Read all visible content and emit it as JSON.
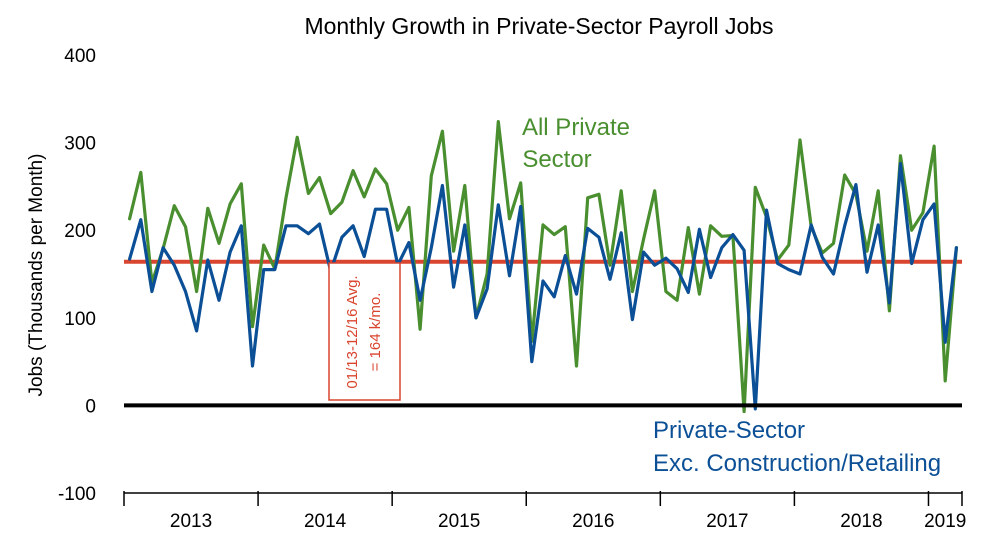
{
  "chart_data": {
    "type": "line",
    "title": "Monthly Growth in Private-Sector Payroll Jobs",
    "ylabel": "Jobs (Thousands per Month)",
    "ylim": [
      -100,
      400
    ],
    "yticks": [
      "400",
      "300",
      "200",
      "100",
      "0",
      "-100"
    ],
    "ytick_values": [
      400,
      300,
      200,
      100,
      0,
      -100
    ],
    "x_years": [
      "2013",
      "2014",
      "2015",
      "2016",
      "2017",
      "2018",
      "2019"
    ],
    "grid": false,
    "colors": {
      "all": "#4a8f2f",
      "exc": "#0b4f96",
      "avg": "#d9452e",
      "zero": "#000000"
    },
    "reference_line": {
      "value": 164,
      "label_lines": [
        "01/13-12/16 Avg.",
        "= 164 k/mo."
      ]
    },
    "series": [
      {
        "name": "All Private Sector",
        "label_lines": [
          "All Private",
          "Sector"
        ],
        "values": [
          213,
          266,
          140,
          179,
          228,
          204,
          130,
          225,
          185,
          230,
          253,
          90,
          183,
          156,
          237,
          306,
          242,
          260,
          219,
          232,
          268,
          238,
          270,
          253,
          200,
          226,
          87,
          262,
          313,
          176,
          251,
          100,
          150,
          324,
          213,
          254,
          73,
          206,
          195,
          204,
          45,
          237,
          241,
          160,
          245,
          130,
          190,
          245,
          130,
          120,
          203,
          127,
          205,
          193,
          194,
          -7,
          249,
          215,
          166,
          183,
          303,
          204,
          174,
          185,
          263,
          241,
          176,
          245,
          108,
          285,
          200,
          220,
          296,
          28,
          180
        ],
        "start": "2013-01"
      },
      {
        "name": "Private-Sector Exc. Construction/Retailing",
        "label_lines": [
          "Private-Sector",
          "Exc. Construction/Retailing"
        ],
        "values": [
          167,
          212,
          130,
          180,
          160,
          130,
          85,
          166,
          120,
          175,
          205,
          45,
          155,
          155,
          205,
          205,
          196,
          207,
          153,
          192,
          205,
          170,
          224,
          224,
          160,
          186,
          120,
          180,
          251,
          135,
          206,
          100,
          133,
          229,
          148,
          227,
          50,
          142,
          124,
          171,
          127,
          202,
          192,
          144,
          197,
          98,
          175,
          160,
          168,
          156,
          129,
          201,
          146,
          180,
          195,
          177,
          -4,
          223,
          162,
          155,
          150,
          206,
          169,
          150,
          205,
          252,
          152,
          206,
          117,
          276,
          162,
          212,
          230,
          72,
          180
        ],
        "start": "2013-01"
      }
    ]
  }
}
